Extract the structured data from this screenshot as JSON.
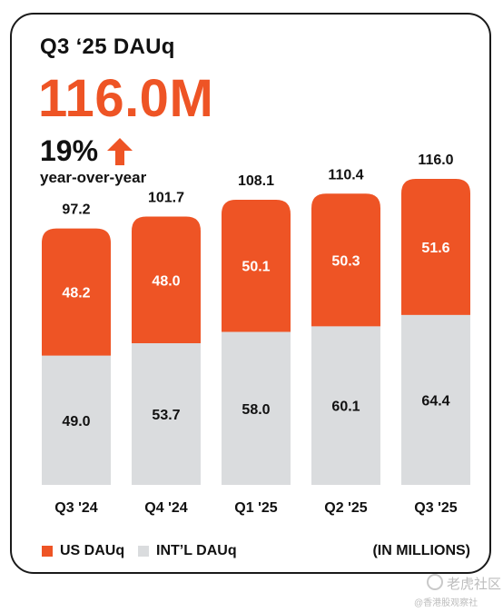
{
  "header": {
    "title": "Q3 ‘25 DAUq",
    "headline_value": "116.0M",
    "yoy_value": "19%",
    "yoy_label": "year-over-year"
  },
  "colors": {
    "us": "#ee5425",
    "intl": "#dadcde",
    "accent": "#ee5425"
  },
  "legend": {
    "us_label": "US DAUq",
    "intl_label": "INT’L DAUq",
    "units": "(IN MILLIONS)"
  },
  "watermark": {
    "line1": "老虎社区",
    "line2": "@香港股观察社"
  },
  "chart_data": {
    "type": "bar",
    "stacked": true,
    "categories": [
      "Q3 '24",
      "Q4 '24",
      "Q1 '25",
      "Q2 '25",
      "Q3 '25"
    ],
    "series": [
      {
        "name": "INT’L DAUq",
        "values": [
          49.0,
          53.7,
          58.0,
          60.1,
          64.4
        ]
      },
      {
        "name": "US DAUq",
        "values": [
          48.2,
          48.0,
          50.1,
          50.3,
          51.6
        ]
      }
    ],
    "totals": [
      97.2,
      101.7,
      108.1,
      110.4,
      116.0
    ],
    "ylim": [
      0,
      116.0
    ],
    "grid": false,
    "legend_position": "bottom"
  }
}
